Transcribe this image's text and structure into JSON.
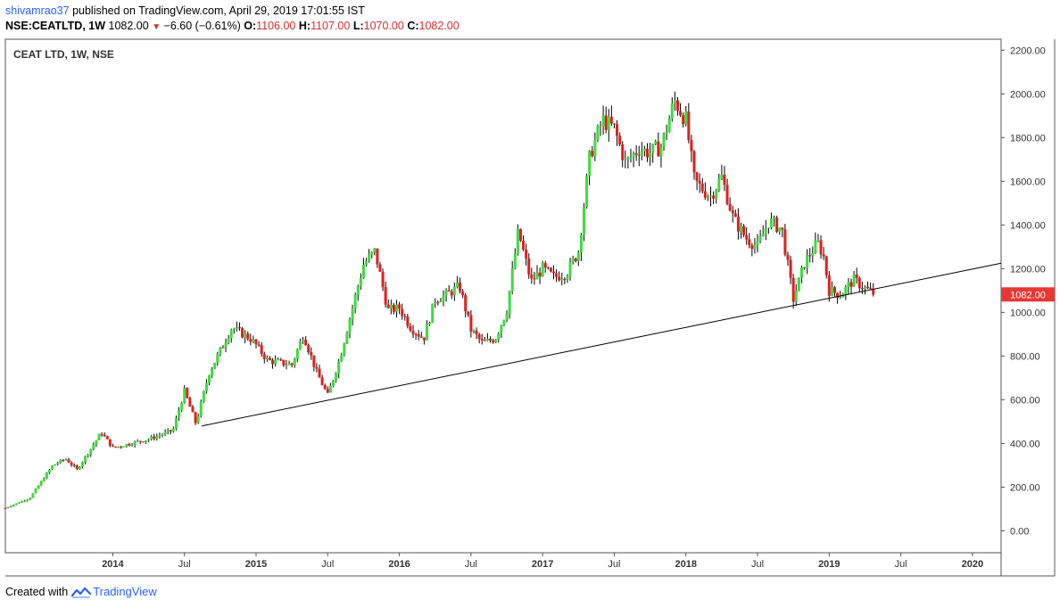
{
  "header": {
    "author": "shivamrao37",
    "published": "published on TradingView.com, April 29, 2019 17:01:55 IST",
    "symbol_line": "NSE:CEATLTD, 1W",
    "last": "1082.00",
    "change": "−6.60 (−0.61%)",
    "open_label": "O:",
    "open": "1106.00",
    "high_label": "H:",
    "high": "1107.00",
    "low_label": "L:",
    "low": "1070.00",
    "close_label": "C:",
    "close": "1082.00"
  },
  "footer": {
    "created_with": "Created with",
    "brand": "TradingView"
  },
  "colors": {
    "up": "#3ddc3d",
    "down": "#e01e1e",
    "wick": "#000000",
    "axis": "#555555",
    "price_badge": "#e53935"
  },
  "chart_data": {
    "type": "candlestick",
    "title": "CEAT LTD, 1W, NSE",
    "interval": "1W",
    "ylim": [
      -100,
      2250
    ],
    "y_ticks": [
      0,
      200,
      400,
      600,
      800,
      1000,
      1200,
      1400,
      1600,
      1800,
      2000,
      2200
    ],
    "y_tick_labels": [
      "0.00",
      "200.00",
      "400.00",
      "600.00",
      "800.00",
      "1000.00",
      "1200.00",
      "1400.00",
      "1600.00",
      "1800.00",
      "2000.00",
      "2200.00"
    ],
    "xlim": [
      2013.25,
      2020.2
    ],
    "x_ticks": [
      2014.0,
      2014.5,
      2015.0,
      2015.5,
      2016.0,
      2016.5,
      2017.0,
      2017.5,
      2018.0,
      2018.5,
      2019.0,
      2019.5,
      2020.0
    ],
    "x_tick_labels": [
      "2014",
      "Jul",
      "2015",
      "Jul",
      "2016",
      "Jul",
      "2017",
      "Jul",
      "2018",
      "Jul",
      "2019",
      "Jul",
      "2020"
    ],
    "current_price": 1082.0,
    "current_price_label": "1082.00",
    "price_path": [
      [
        2013.25,
        105
      ],
      [
        2013.42,
        150
      ],
      [
        2013.58,
        300
      ],
      [
        2013.67,
        330
      ],
      [
        2013.75,
        280
      ],
      [
        2013.92,
        450
      ],
      [
        2014.0,
        380
      ],
      [
        2014.25,
        420
      ],
      [
        2014.42,
        460
      ],
      [
        2014.5,
        640
      ],
      [
        2014.58,
        490
      ],
      [
        2014.67,
        720
      ],
      [
        2014.83,
        930
      ],
      [
        2014.96,
        880
      ],
      [
        2015.0,
        850
      ],
      [
        2015.08,
        780
      ],
      [
        2015.25,
        760
      ],
      [
        2015.33,
        900
      ],
      [
        2015.42,
        730
      ],
      [
        2015.5,
        620
      ],
      [
        2015.58,
        780
      ],
      [
        2015.75,
        1220
      ],
      [
        2015.83,
        1280
      ],
      [
        2015.92,
        1010
      ],
      [
        2016.0,
        1020
      ],
      [
        2016.08,
        930
      ],
      [
        2016.17,
        880
      ],
      [
        2016.25,
        1060
      ],
      [
        2016.33,
        1080
      ],
      [
        2016.42,
        1120
      ],
      [
        2016.5,
        920
      ],
      [
        2016.58,
        860
      ],
      [
        2016.67,
        880
      ],
      [
        2016.75,
        1010
      ],
      [
        2016.83,
        1370
      ],
      [
        2016.92,
        1140
      ],
      [
        2017.0,
        1200
      ],
      [
        2017.08,
        1160
      ],
      [
        2017.17,
        1180
      ],
      [
        2017.25,
        1280
      ],
      [
        2017.33,
        1720
      ],
      [
        2017.42,
        1880
      ],
      [
        2017.5,
        1840
      ],
      [
        2017.58,
        1680
      ],
      [
        2017.67,
        1750
      ],
      [
        2017.75,
        1730
      ],
      [
        2017.83,
        1760
      ],
      [
        2017.92,
        1970
      ],
      [
        2018.0,
        1880
      ],
      [
        2018.06,
        1600
      ],
      [
        2018.17,
        1530
      ],
      [
        2018.25,
        1620
      ],
      [
        2018.33,
        1430
      ],
      [
        2018.42,
        1340
      ],
      [
        2018.5,
        1300
      ],
      [
        2018.58,
        1420
      ],
      [
        2018.67,
        1380
      ],
      [
        2018.75,
        1060
      ],
      [
        2018.83,
        1230
      ],
      [
        2018.92,
        1320
      ],
      [
        2018.96,
        1260
      ],
      [
        2019.0,
        1100
      ],
      [
        2019.08,
        1080
      ],
      [
        2019.17,
        1150
      ],
      [
        2019.25,
        1110
      ],
      [
        2019.32,
        1082
      ]
    ],
    "trendline": {
      "from": [
        2014.62,
        480
      ],
      "to": [
        2020.2,
        1225
      ]
    },
    "annotations": [
      {
        "text": "CEAT LTD, 1W, NSE",
        "position": "top-left"
      }
    ]
  }
}
